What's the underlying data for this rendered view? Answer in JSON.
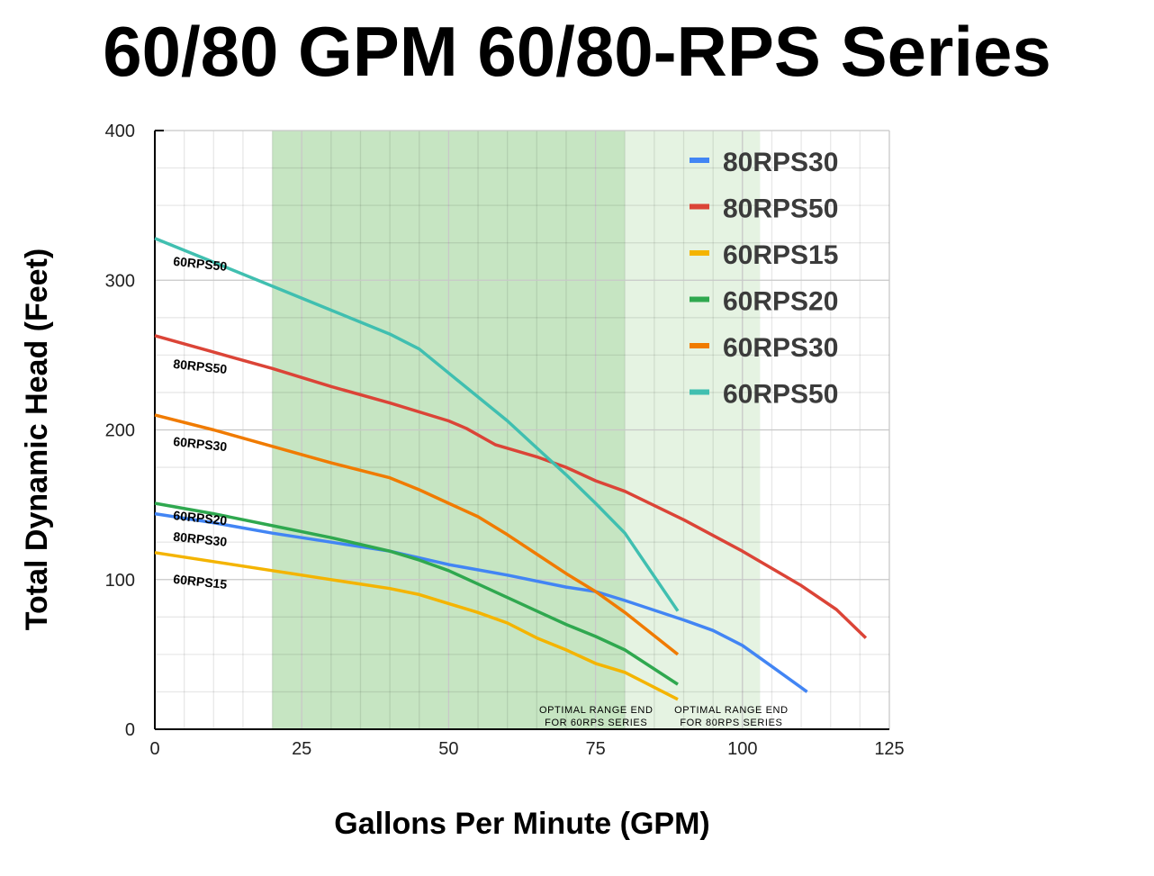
{
  "title": "60/80 GPM 60/80-RPS Series",
  "chart_data": {
    "type": "line",
    "title": "60/80 GPM 60/80-RPS Series",
    "xlabel": "Gallons Per Minute (GPM)",
    "ylabel": "Total Dynamic Head (Feet)",
    "xlim": [
      0,
      125
    ],
    "ylim": [
      0,
      400
    ],
    "xticks": [
      0,
      25,
      50,
      75,
      100,
      125
    ],
    "yticks": [
      0,
      100,
      200,
      300,
      400
    ],
    "grid": true,
    "legend": "top-right",
    "bands": [
      {
        "from": 20,
        "to": 80,
        "color": "#c6e5c2"
      },
      {
        "from": 80,
        "to": 103,
        "color": "#e5f3e2"
      }
    ],
    "annotations": [
      {
        "text": [
          "OPTIMAL RANGE END",
          "FOR 60RPS SERIES"
        ],
        "x": 80
      },
      {
        "text": [
          "OPTIMAL RANGE END",
          "FOR 80RPS SERIES"
        ],
        "x": 103
      }
    ],
    "series": [
      {
        "name": "80RPS30",
        "color": "#4285f4",
        "label": "80RPS30",
        "x": [
          0,
          10,
          20,
          30,
          40,
          50,
          60,
          70,
          75,
          80,
          90,
          95,
          100,
          105,
          111
        ],
        "y": [
          144,
          138,
          131,
          125,
          119,
          110,
          103,
          95,
          92,
          86,
          73,
          66,
          56,
          42,
          25
        ]
      },
      {
        "name": "80RPS50",
        "color": "#db4437",
        "label": "80RPS50",
        "x": [
          0,
          10,
          20,
          30,
          40,
          50,
          53,
          58,
          65,
          70,
          75,
          80,
          90,
          100,
          110,
          116,
          121
        ],
        "y": [
          263,
          252,
          241,
          229,
          218,
          206,
          201,
          190,
          182,
          175,
          166,
          159,
          140,
          119,
          96,
          80,
          61
        ]
      },
      {
        "name": "60RPS15",
        "color": "#f4b400",
        "label": "60RPS15",
        "x": [
          0,
          10,
          20,
          30,
          40,
          45,
          50,
          55,
          60,
          65,
          70,
          75,
          80,
          89
        ],
        "y": [
          118,
          112,
          106,
          100,
          94,
          90,
          84,
          78,
          71,
          61,
          53,
          44,
          38,
          20
        ]
      },
      {
        "name": "60RPS20",
        "color": "#2fa84f",
        "label": "60RPS20",
        "x": [
          0,
          10,
          20,
          30,
          40,
          45,
          50,
          55,
          60,
          65,
          70,
          75,
          80,
          89
        ],
        "y": [
          151,
          144,
          136,
          128,
          119,
          113,
          106,
          97,
          88,
          79,
          70,
          62,
          53,
          30
        ]
      },
      {
        "name": "60RPS30",
        "color": "#f07b00",
        "label": "60RPS30",
        "x": [
          0,
          10,
          20,
          30,
          40,
          45,
          50,
          55,
          60,
          65,
          70,
          75,
          80,
          89
        ],
        "y": [
          210,
          200,
          189,
          178,
          168,
          160,
          151,
          142,
          130,
          117,
          104,
          92,
          78,
          50
        ]
      },
      {
        "name": "60RPS50",
        "color": "#40bfb0",
        "label": "60RPS50",
        "x": [
          0,
          10,
          20,
          30,
          40,
          45,
          50,
          55,
          60,
          65,
          70,
          75,
          80,
          89
        ],
        "y": [
          328,
          312,
          296,
          280,
          264,
          254,
          238,
          222,
          206,
          188,
          170,
          151,
          131,
          79
        ]
      }
    ]
  }
}
